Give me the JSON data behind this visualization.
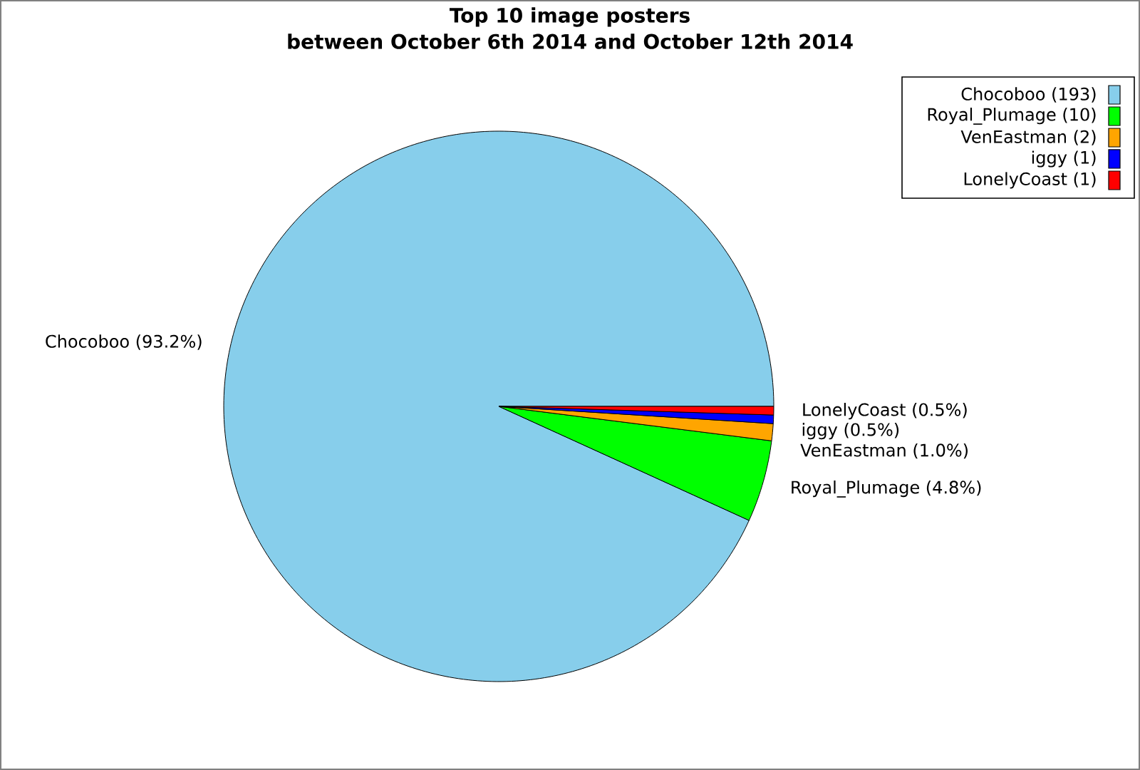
{
  "chart_data": {
    "type": "pie",
    "title": "Top 10 image posters",
    "subtitle": "between October 6th 2014 and October 12th 2014",
    "categories": [
      "Chocoboo (193)",
      "Royal_Plumage (10)",
      "VenEastman (2)",
      "iggy (1)",
      "LonelyCoast (1)"
    ],
    "values": [
      93.2,
      4.8,
      1.0,
      0.5,
      0.5
    ],
    "colors": [
      "#87ceeb",
      "#00ff00",
      "#ffa500",
      "#0000ff",
      "#ff0000"
    ],
    "value_labels": [
      "Chocoboo (93.2%)",
      "Royal_Plumage (4.8%)",
      "VenEastman (1.0%)",
      "iggy (0.5%)",
      "LonelyCoast (0.5%)"
    ],
    "legend": "top right"
  }
}
